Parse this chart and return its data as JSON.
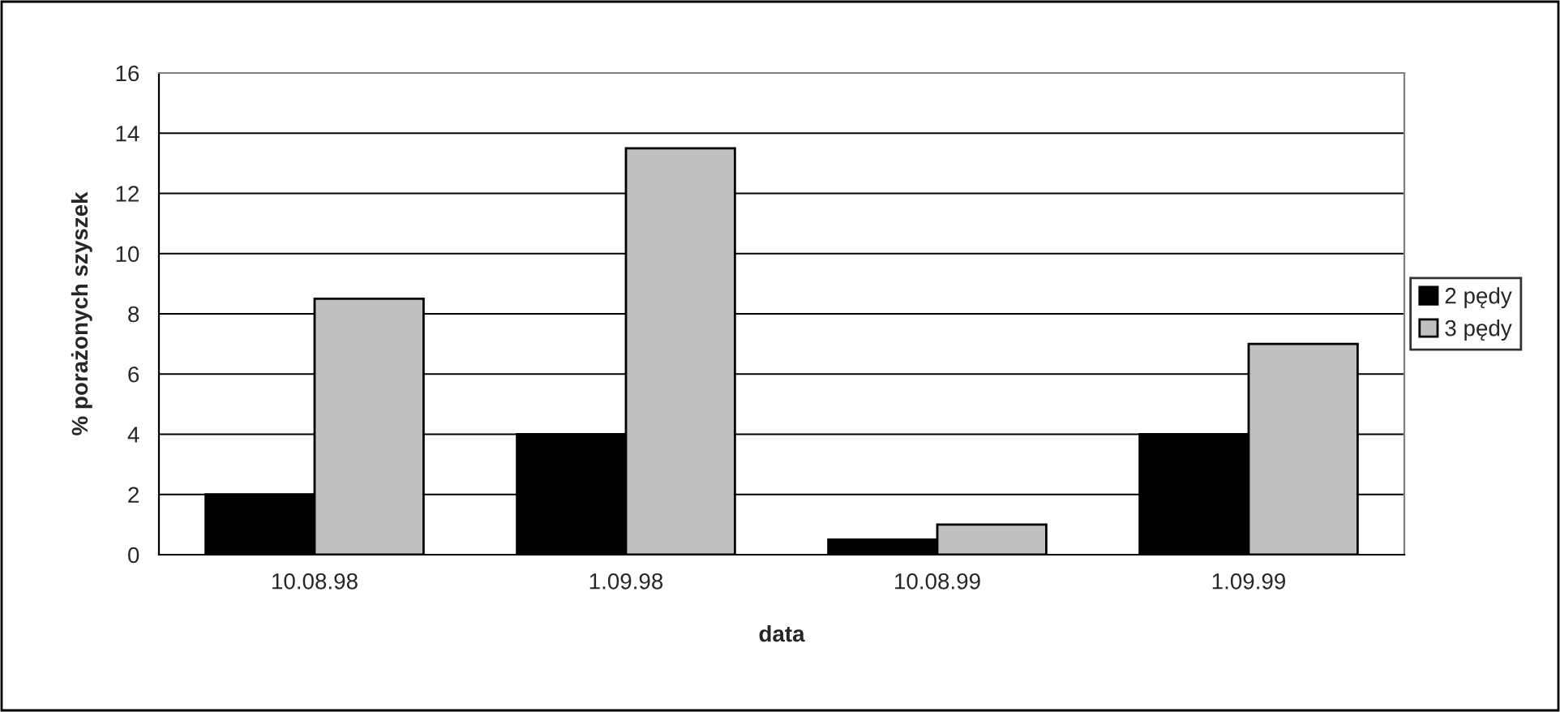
{
  "chart_data": {
    "type": "bar",
    "xlabel": "data",
    "ylabel": "% porażonych szyszek",
    "categories": [
      "10.08.98",
      "1.09.98",
      "10.08.99",
      "1.09.99"
    ],
    "series": [
      {
        "name": "2 pędy",
        "color": "#000000",
        "values": [
          2,
          4,
          0.5,
          4
        ]
      },
      {
        "name": "3 pędy",
        "color": "#c0c0c0",
        "values": [
          8.5,
          13.5,
          1,
          7
        ]
      }
    ],
    "ylim": [
      0,
      16
    ],
    "yticks": [
      0,
      2,
      4,
      6,
      8,
      10,
      12,
      14,
      16
    ],
    "grid": "y",
    "legend": "right"
  }
}
